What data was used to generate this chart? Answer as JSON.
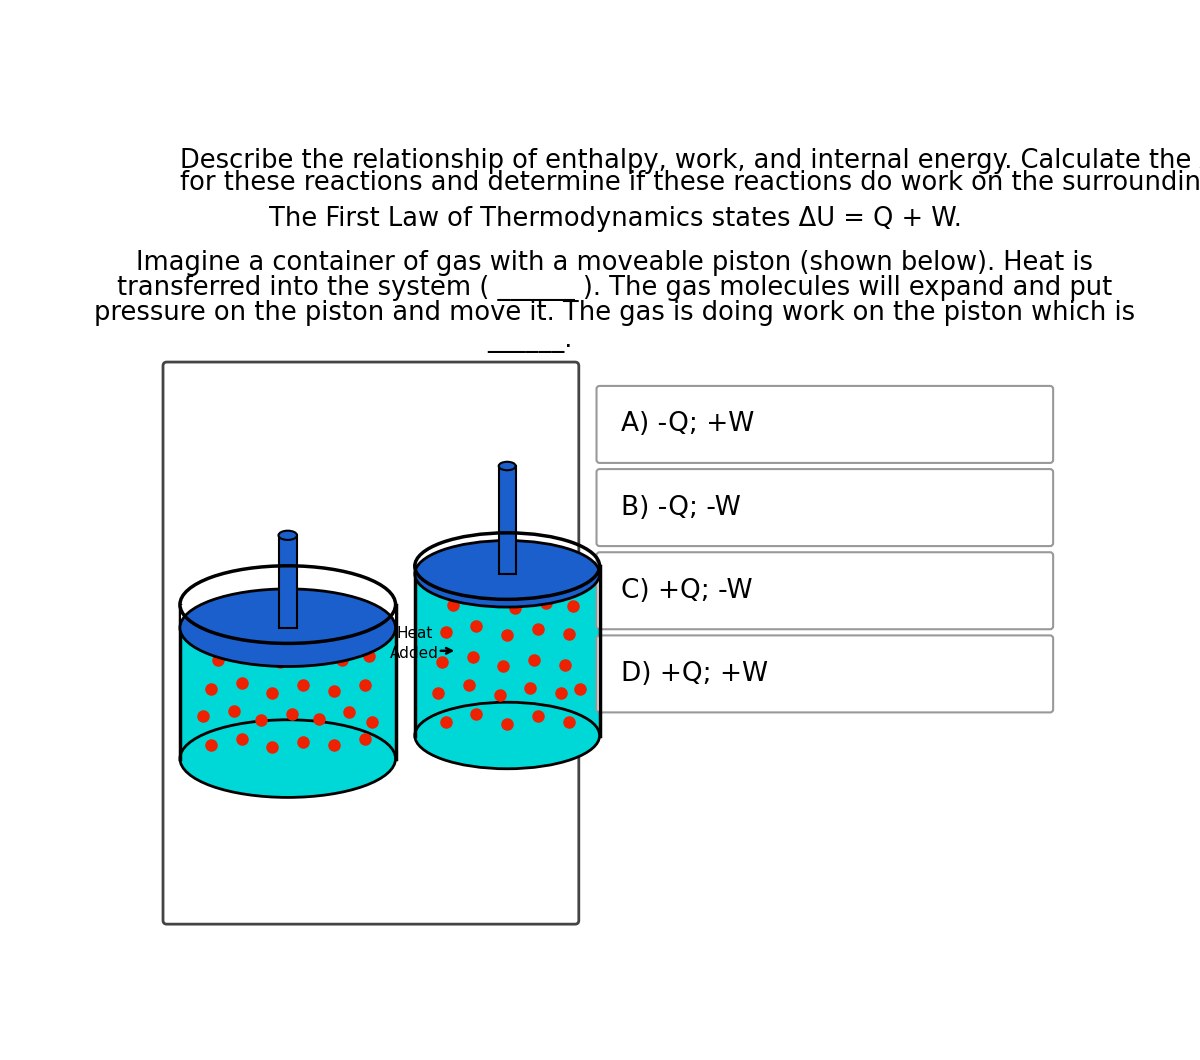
{
  "title_text": "Describe the relationship of enthalpy, work, and internal energy. Calculate the ΔU\nfor these reactions and determine if these reactions do work on the surroundings.",
  "law_text": "The First Law of Thermodynamics states ΔU = Q + W.",
  "body_line1": "Imagine a container of gas with a moveable piston (shown below). Heat is",
  "body_line2": "transferred into the system ( ______ ). The gas molecules will expand and put",
  "body_line3": "pressure on the piston and move it. The gas is doing work on the piston which is",
  "body_line4": "______.",
  "choices": [
    "A) -Q; +W",
    "B) -Q; -W",
    "C) +Q; -W",
    "D) +Q; +W"
  ],
  "heat_label": "Heat\nAdded",
  "bg_color": "#ffffff",
  "text_color": "#000000",
  "piston_blue": "#1a5fcc",
  "gas_cyan": "#00d8d8",
  "dot_red": "#ee2200",
  "box_border": "#999999"
}
